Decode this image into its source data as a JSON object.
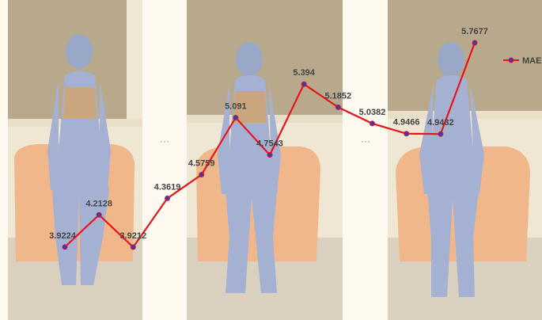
{
  "chart_data": {
    "type": "line",
    "categories": [
      null,
      null,
      null,
      null,
      null,
      null,
      null,
      null,
      null,
      null,
      null,
      null,
      null
    ],
    "series": [
      {
        "name": "MAE",
        "color": "#e8141c",
        "values": [
          3.9224,
          4.2128,
          3.9212,
          4.3619,
          4.5759,
          5.091,
          4.7543,
          5.394,
          5.1852,
          5.0382,
          4.9466,
          4.9432,
          5.7677
        ]
      }
    ],
    "annotations": [
      "···",
      "···"
    ],
    "legend": "upper right"
  }
}
